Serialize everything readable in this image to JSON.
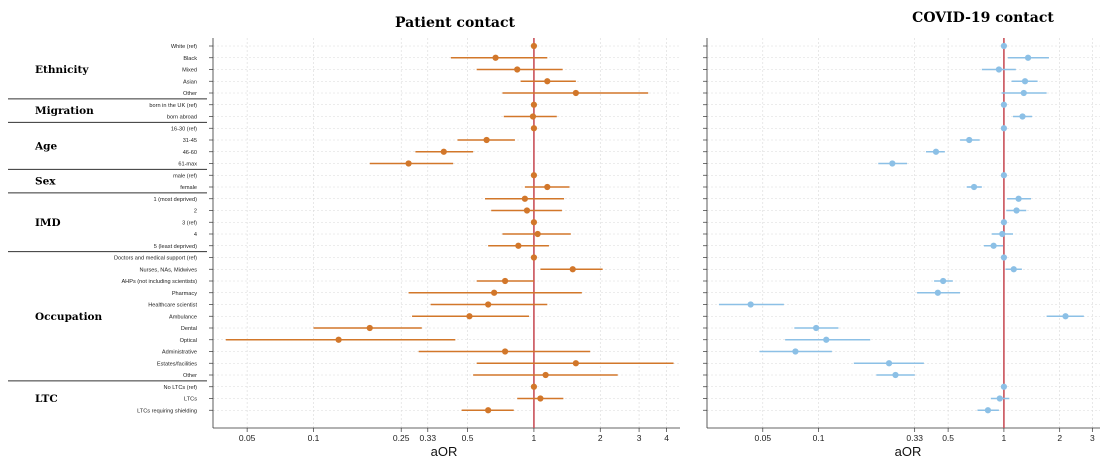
{
  "colors": {
    "patient": "#d2772a",
    "covid": "#8cc0e6",
    "refline": "#c95059",
    "grid": "#d8d8d8"
  },
  "chart_data": [
    {
      "type": "scatter",
      "subtype": "forest-plot",
      "title": "Patient contact",
      "xlabel": "aOR",
      "x_scale": "log",
      "xlim": [
        0.035,
        4.6
      ],
      "ticks": [
        0.05,
        0.1,
        0.25,
        0.33,
        0.5,
        1,
        2,
        3,
        4
      ],
      "tick_labels": [
        "0.05",
        "0.1",
        "0.25",
        "0.33",
        "0.5",
        "1",
        "2",
        "3",
        "4"
      ],
      "reference_line": 1,
      "grid": true,
      "series": [
        {
          "color": "#d2772a",
          "points": [
            {
              "est": 1,
              "lo": 1,
              "hi": 1
            },
            {
              "est": 0.67,
              "lo": 0.42,
              "hi": 1.15
            },
            {
              "est": 0.84,
              "lo": 0.55,
              "hi": 1.35
            },
            {
              "est": 1.15,
              "lo": 0.87,
              "hi": 1.55
            },
            {
              "est": 1.55,
              "lo": 0.72,
              "hi": 3.3
            },
            {
              "est": 1,
              "lo": 1,
              "hi": 1
            },
            {
              "est": 0.99,
              "lo": 0.73,
              "hi": 1.27
            },
            {
              "est": 1,
              "lo": 1,
              "hi": 1
            },
            {
              "est": 0.61,
              "lo": 0.45,
              "hi": 0.82
            },
            {
              "est": 0.39,
              "lo": 0.29,
              "hi": 0.53
            },
            {
              "est": 0.27,
              "lo": 0.18,
              "hi": 0.43
            },
            {
              "est": 1,
              "lo": 1,
              "hi": 1
            },
            {
              "est": 1.15,
              "lo": 0.91,
              "hi": 1.45
            },
            {
              "est": 0.91,
              "lo": 0.6,
              "hi": 1.37
            },
            {
              "est": 0.93,
              "lo": 0.64,
              "hi": 1.34
            },
            {
              "est": 1,
              "lo": 1,
              "hi": 1
            },
            {
              "est": 1.04,
              "lo": 0.72,
              "hi": 1.47
            },
            {
              "est": 0.85,
              "lo": 0.62,
              "hi": 1.17
            },
            {
              "est": 1,
              "lo": 1,
              "hi": 1
            },
            {
              "est": 1.5,
              "lo": 1.07,
              "hi": 2.05
            },
            {
              "est": 0.74,
              "lo": 0.55,
              "hi": 1
            },
            {
              "est": 0.66,
              "lo": 0.27,
              "hi": 1.65
            },
            {
              "est": 0.62,
              "lo": 0.34,
              "hi": 1.15
            },
            {
              "est": 0.51,
              "lo": 0.28,
              "hi": 0.95
            },
            {
              "est": 0.18,
              "lo": 0.1,
              "hi": 0.31
            },
            {
              "est": 0.13,
              "lo": 0.04,
              "hi": 0.44
            },
            {
              "est": 0.74,
              "lo": 0.3,
              "hi": 1.8
            },
            {
              "est": 1.55,
              "lo": 0.55,
              "hi": 4.3
            },
            {
              "est": 1.13,
              "lo": 0.53,
              "hi": 2.4
            },
            {
              "est": 1,
              "lo": 1,
              "hi": 1
            },
            {
              "est": 1.07,
              "lo": 0.84,
              "hi": 1.36
            },
            {
              "est": 0.62,
              "lo": 0.47,
              "hi": 0.81
            }
          ]
        }
      ]
    },
    {
      "type": "scatter",
      "subtype": "forest-plot",
      "title": "COVID-19 contact",
      "xlabel": "aOR",
      "x_scale": "log",
      "xlim": [
        0.025,
        3.3
      ],
      "ticks": [
        0.05,
        0.1,
        0.33,
        0.5,
        1,
        2,
        3
      ],
      "tick_labels": [
        "0.05",
        "0.1",
        "0.33",
        "0.5",
        "1",
        "2",
        "3"
      ],
      "reference_line": 1,
      "grid": true,
      "series": [
        {
          "color": "#8cc0e6",
          "points": [
            {
              "est": 1,
              "lo": 1,
              "hi": 1
            },
            {
              "est": 1.35,
              "lo": 1.05,
              "hi": 1.75
            },
            {
              "est": 0.94,
              "lo": 0.76,
              "hi": 1.16
            },
            {
              "est": 1.3,
              "lo": 1.1,
              "hi": 1.52
            },
            {
              "est": 1.28,
              "lo": 0.97,
              "hi": 1.7
            },
            {
              "est": 1,
              "lo": 1,
              "hi": 1
            },
            {
              "est": 1.26,
              "lo": 1.12,
              "hi": 1.42
            },
            {
              "est": 1,
              "lo": 1,
              "hi": 1
            },
            {
              "est": 0.65,
              "lo": 0.58,
              "hi": 0.74
            },
            {
              "est": 0.43,
              "lo": 0.38,
              "hi": 0.48
            },
            {
              "est": 0.25,
              "lo": 0.21,
              "hi": 0.3
            },
            {
              "est": 1,
              "lo": 1,
              "hi": 1
            },
            {
              "est": 0.69,
              "lo": 0.63,
              "hi": 0.76
            },
            {
              "est": 1.2,
              "lo": 1.04,
              "hi": 1.4
            },
            {
              "est": 1.17,
              "lo": 1.03,
              "hi": 1.32
            },
            {
              "est": 1,
              "lo": 1,
              "hi": 1
            },
            {
              "est": 0.98,
              "lo": 0.86,
              "hi": 1.12
            },
            {
              "est": 0.88,
              "lo": 0.78,
              "hi": 0.99
            },
            {
              "est": 1,
              "lo": 1,
              "hi": 1
            },
            {
              "est": 1.13,
              "lo": 1.02,
              "hi": 1.25
            },
            {
              "est": 0.47,
              "lo": 0.42,
              "hi": 0.53
            },
            {
              "est": 0.44,
              "lo": 0.34,
              "hi": 0.58
            },
            {
              "est": 0.043,
              "lo": 0.029,
              "hi": 0.065
            },
            {
              "est": 2.15,
              "lo": 1.7,
              "hi": 2.7
            },
            {
              "est": 0.097,
              "lo": 0.074,
              "hi": 0.128
            },
            {
              "est": 0.11,
              "lo": 0.066,
              "hi": 0.19
            },
            {
              "est": 0.075,
              "lo": 0.048,
              "hi": 0.118
            },
            {
              "est": 0.24,
              "lo": 0.155,
              "hi": 0.37
            },
            {
              "est": 0.26,
              "lo": 0.205,
              "hi": 0.33
            },
            {
              "est": 1,
              "lo": 1,
              "hi": 1
            },
            {
              "est": 0.95,
              "lo": 0.85,
              "hi": 1.07
            },
            {
              "est": 0.82,
              "lo": 0.72,
              "hi": 0.94
            }
          ]
        }
      ]
    }
  ],
  "categories": [
    "White (ref)",
    "Black",
    "Mixed",
    "Asian",
    "Other",
    "born in the UK (ref)",
    "born abroad",
    "16-30 (ref)",
    "31-45",
    "46-60",
    "61-max",
    "male (ref)",
    "female",
    "1 (most deprived)",
    "2",
    "3 (ref)",
    "4",
    "5 (least deprived)",
    "Doctors and medical support (ref)",
    "Nurses, NAs, Midwives",
    "AHPs (not including scientists)",
    "Pharmacy",
    "Healthcare scientist",
    "Ambulance",
    "Dental",
    "Optical",
    "Administrative",
    "Estates/facilities",
    "Other",
    "No LTCs (ref)",
    "LTCs",
    "LTCs requiring shielding"
  ],
  "groups": [
    {
      "label": "Ethnicity",
      "start": 0,
      "end": 4
    },
    {
      "label": "Migration",
      "start": 5,
      "end": 6
    },
    {
      "label": "Age",
      "start": 7,
      "end": 10
    },
    {
      "label": "Sex",
      "start": 11,
      "end": 12
    },
    {
      "label": "IMD",
      "start": 13,
      "end": 17
    },
    {
      "label": "Occupation",
      "start": 18,
      "end": 28
    },
    {
      "label": "LTC",
      "start": 29,
      "end": 31
    }
  ]
}
